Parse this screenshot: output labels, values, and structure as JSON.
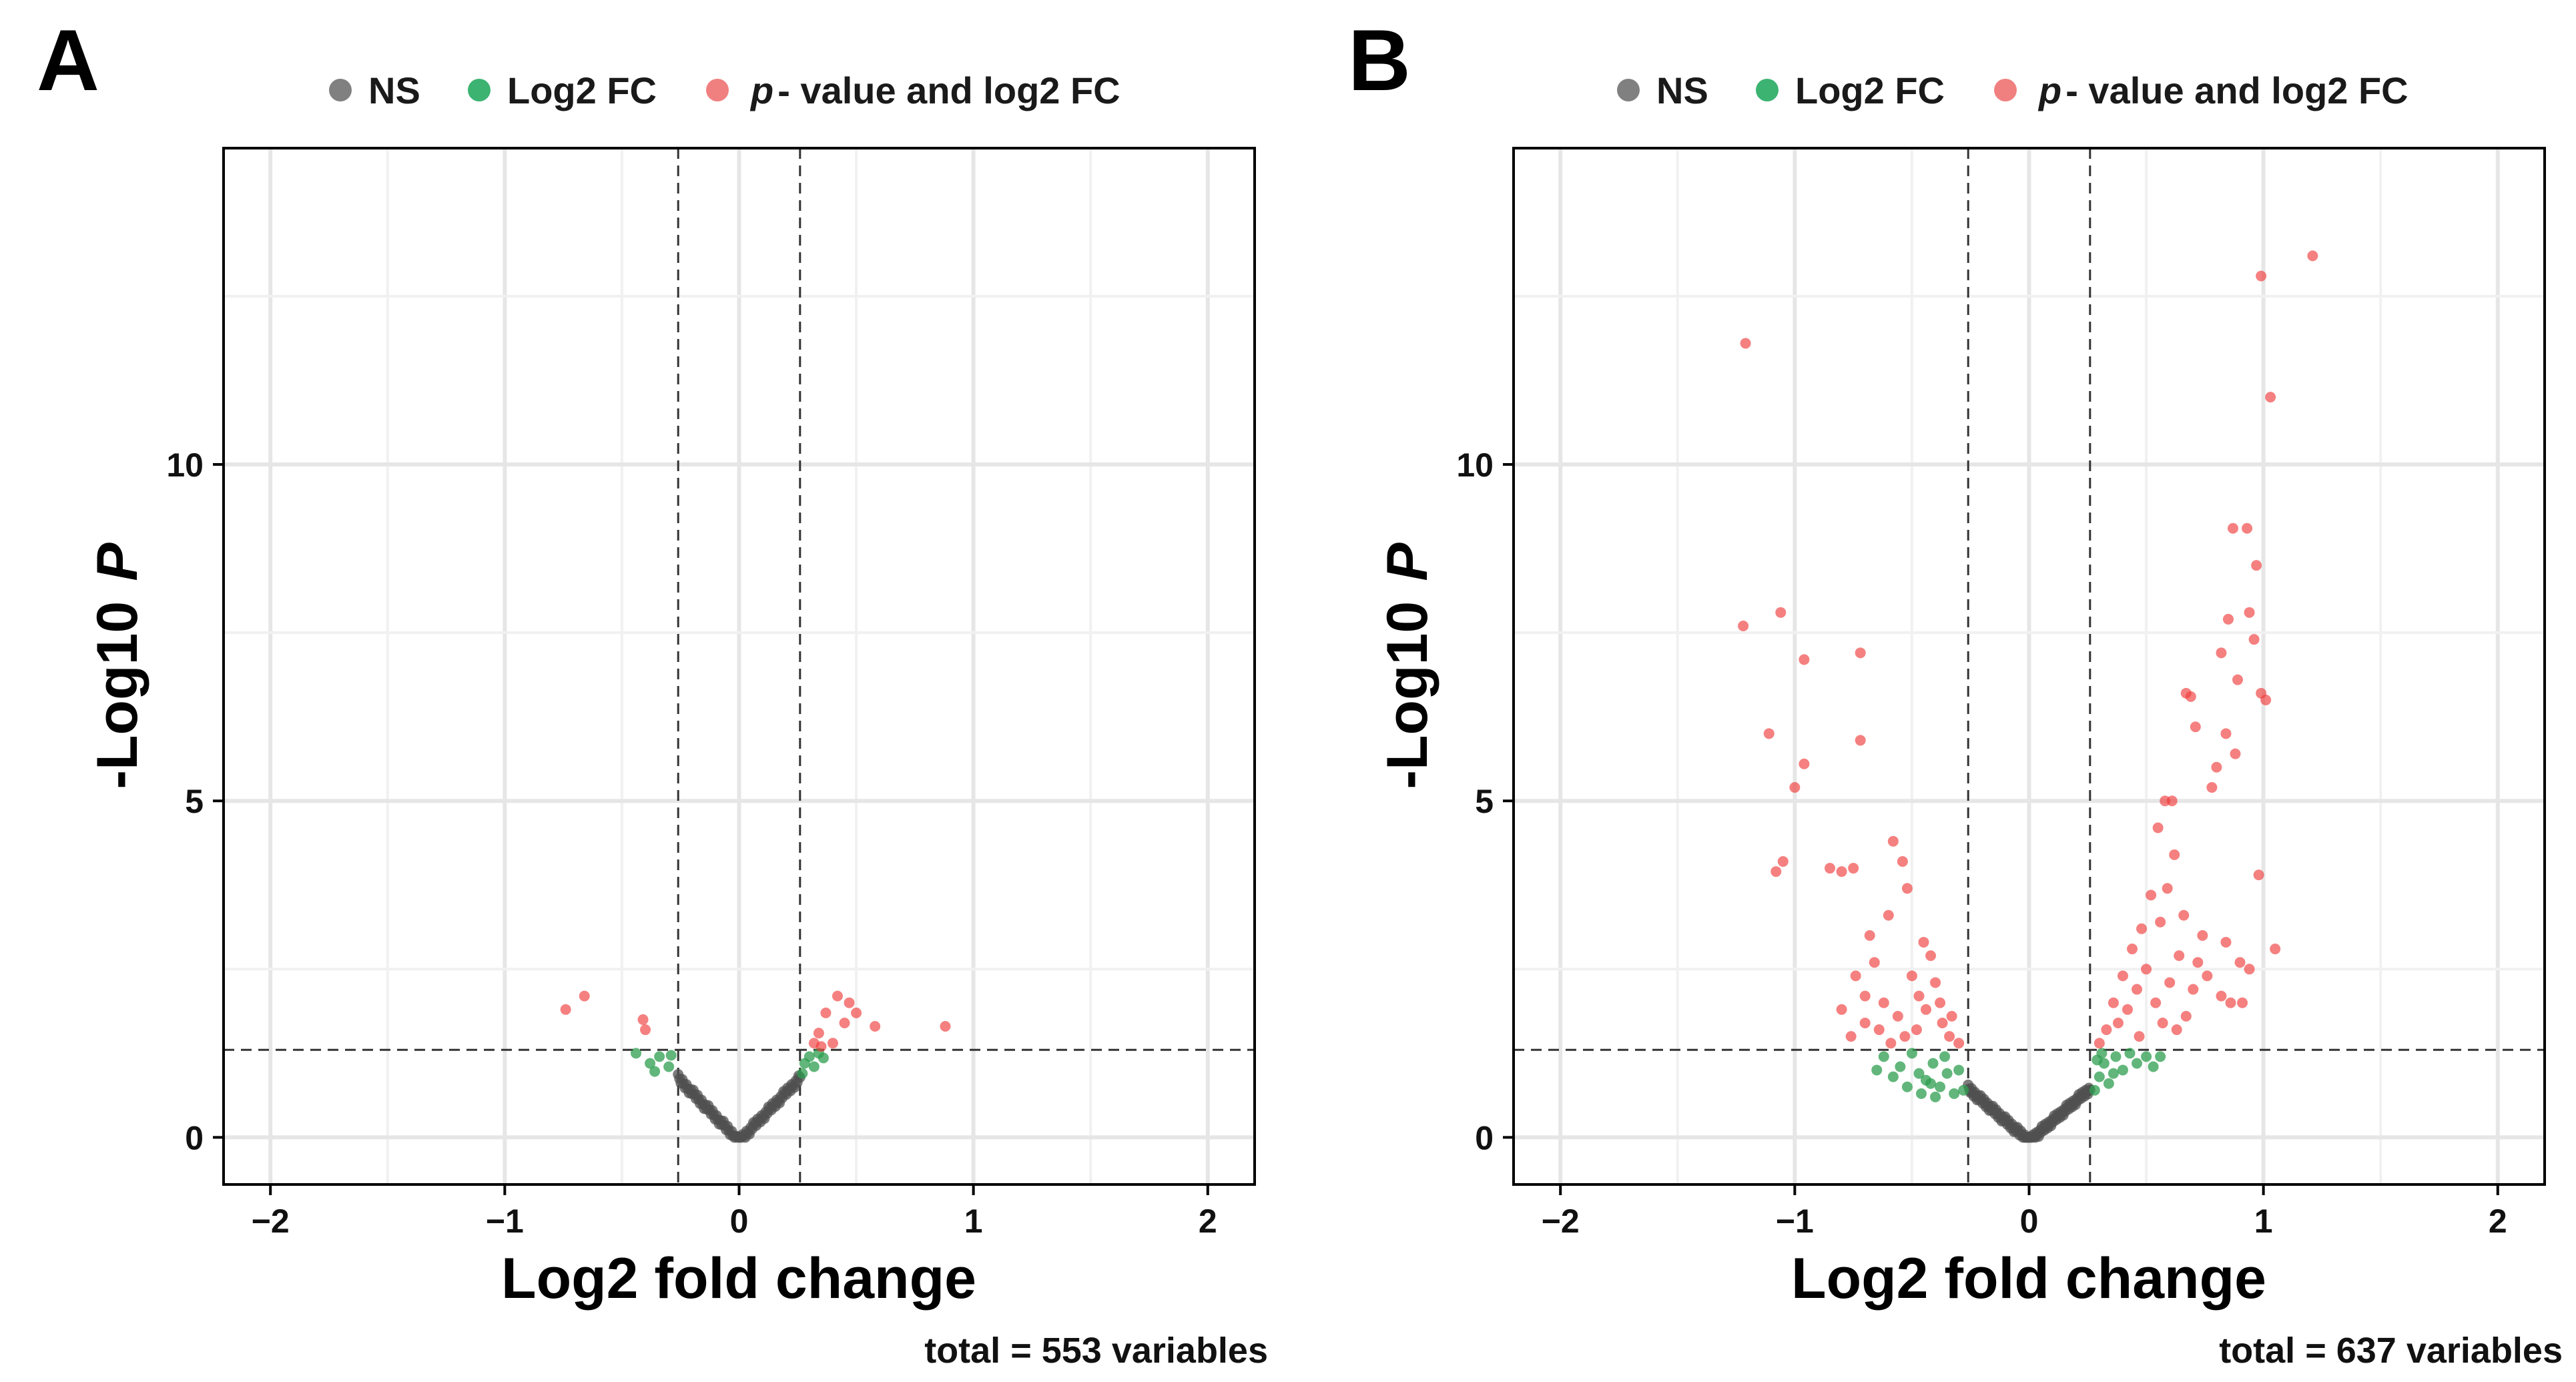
{
  "chart_data": [
    {
      "type": "scatter",
      "panel": "A",
      "legend": [
        {
          "label": "NS",
          "color": "#808080"
        },
        {
          "label": "Log2 FC",
          "color": "#3cb371"
        },
        {
          "label_italic": "p",
          "label": "- value  and  log2  FC",
          "color": "#f08080"
        }
      ],
      "xlabel": "Log2 fold change",
      "ylabel_prefix": "-Log10",
      "ylabel_italic": "P",
      "xlim": [
        -2.2,
        2.2
      ],
      "ylim": [
        -0.7,
        14.7
      ],
      "xticks": [
        "−2",
        "−1",
        "0",
        "1",
        "2"
      ],
      "xtick_values": [
        -2,
        -1,
        0,
        1,
        2
      ],
      "yticks": [
        "0",
        "5",
        "10"
      ],
      "ytick_values": [
        0,
        5,
        10
      ],
      "grid": true,
      "fc_cutoff": 0.26,
      "p_cutoff": 1.3,
      "caption": "total = 553 variables",
      "significant_points": [
        {
          "x": -0.74,
          "y": 1.9
        },
        {
          "x": -0.66,
          "y": 2.1
        },
        {
          "x": -0.41,
          "y": 1.75
        },
        {
          "x": -0.4,
          "y": 1.6
        },
        {
          "x": 0.34,
          "y": 1.55
        },
        {
          "x": 0.37,
          "y": 1.85
        },
        {
          "x": 0.4,
          "y": 1.4
        },
        {
          "x": 0.42,
          "y": 2.1
        },
        {
          "x": 0.45,
          "y": 1.7
        },
        {
          "x": 0.47,
          "y": 2.0
        },
        {
          "x": 0.5,
          "y": 1.85
        },
        {
          "x": 0.58,
          "y": 1.65
        },
        {
          "x": 0.88,
          "y": 1.65
        },
        {
          "x": 0.32,
          "y": 1.4
        },
        {
          "x": 0.35,
          "y": 1.35
        }
      ],
      "fc_points": [
        {
          "x": -0.44,
          "y": 1.25
        },
        {
          "x": -0.38,
          "y": 1.1
        },
        {
          "x": -0.34,
          "y": 1.2
        },
        {
          "x": -0.3,
          "y": 1.05
        },
        {
          "x": -0.29,
          "y": 1.22
        },
        {
          "x": 0.27,
          "y": 0.95
        },
        {
          "x": 0.28,
          "y": 1.1
        },
        {
          "x": 0.3,
          "y": 1.2
        },
        {
          "x": 0.32,
          "y": 1.05
        },
        {
          "x": 0.34,
          "y": 1.25
        },
        {
          "x": 0.36,
          "y": 1.18
        },
        {
          "x": -0.36,
          "y": 0.98
        }
      ],
      "ns_slope": 3.6,
      "ns_xrange": [
        -0.26,
        0.26
      ],
      "ns_count": 90
    },
    {
      "type": "scatter",
      "panel": "B",
      "legend": [
        {
          "label": "NS",
          "color": "#808080"
        },
        {
          "label": "Log2 FC",
          "color": "#3cb371"
        },
        {
          "label_italic": "p",
          "label": "- value  and  log2  FC",
          "color": "#f08080"
        }
      ],
      "xlabel": "Log2 fold change",
      "ylabel_prefix": "-Log10",
      "ylabel_italic": "P",
      "xlim": [
        -2.2,
        2.2
      ],
      "ylim": [
        -0.7,
        14.7
      ],
      "xticks": [
        "−2",
        "−1",
        "0",
        "1",
        "2"
      ],
      "xtick_values": [
        -2,
        -1,
        0,
        1,
        2
      ],
      "yticks": [
        "0",
        "5",
        "10"
      ],
      "ytick_values": [
        0,
        5,
        10
      ],
      "grid": true,
      "fc_cutoff": 0.26,
      "p_cutoff": 1.3,
      "caption": "total = 637 variables",
      "significant_points": [
        {
          "x": -1.21,
          "y": 11.8
        },
        {
          "x": -1.22,
          "y": 7.6
        },
        {
          "x": -1.06,
          "y": 7.8
        },
        {
          "x": -0.96,
          "y": 7.1
        },
        {
          "x": -0.72,
          "y": 7.2
        },
        {
          "x": -0.72,
          "y": 5.9
        },
        {
          "x": -1.11,
          "y": 6.0
        },
        {
          "x": -0.96,
          "y": 5.55
        },
        {
          "x": -1.0,
          "y": 5.2
        },
        {
          "x": -1.08,
          "y": 3.95
        },
        {
          "x": -1.05,
          "y": 4.1
        },
        {
          "x": -0.85,
          "y": 4.0
        },
        {
          "x": -0.8,
          "y": 3.95
        },
        {
          "x": -0.75,
          "y": 4.0
        },
        {
          "x": -0.58,
          "y": 4.4
        },
        {
          "x": -0.54,
          "y": 4.1
        },
        {
          "x": -0.52,
          "y": 3.7
        },
        {
          "x": -0.6,
          "y": 3.3
        },
        {
          "x": -0.68,
          "y": 3.0
        },
        {
          "x": -0.66,
          "y": 2.6
        },
        {
          "x": -0.74,
          "y": 2.4
        },
        {
          "x": -0.7,
          "y": 2.1
        },
        {
          "x": -0.62,
          "y": 2.0
        },
        {
          "x": -0.56,
          "y": 1.8
        },
        {
          "x": -0.5,
          "y": 2.4
        },
        {
          "x": -0.47,
          "y": 2.1
        },
        {
          "x": -0.44,
          "y": 1.9
        },
        {
          "x": -0.42,
          "y": 2.7
        },
        {
          "x": -0.4,
          "y": 2.3
        },
        {
          "x": -0.37,
          "y": 1.7
        },
        {
          "x": -0.34,
          "y": 1.5
        },
        {
          "x": -0.3,
          "y": 1.4
        },
        {
          "x": -0.48,
          "y": 1.6
        },
        {
          "x": -0.53,
          "y": 1.5
        },
        {
          "x": -0.59,
          "y": 1.4
        },
        {
          "x": -0.64,
          "y": 1.6
        },
        {
          "x": -0.8,
          "y": 1.9
        },
        {
          "x": -0.76,
          "y": 1.5
        },
        {
          "x": -0.7,
          "y": 1.7
        },
        {
          "x": -0.45,
          "y": 2.9
        },
        {
          "x": -0.38,
          "y": 2.0
        },
        {
          "x": -0.33,
          "y": 1.8
        },
        {
          "x": 1.21,
          "y": 13.1
        },
        {
          "x": 0.99,
          "y": 12.8
        },
        {
          "x": 1.03,
          "y": 11.0
        },
        {
          "x": 0.87,
          "y": 9.05
        },
        {
          "x": 0.93,
          "y": 9.05
        },
        {
          "x": 0.97,
          "y": 8.5
        },
        {
          "x": 0.85,
          "y": 7.7
        },
        {
          "x": 0.94,
          "y": 7.8
        },
        {
          "x": 0.96,
          "y": 7.4
        },
        {
          "x": 0.82,
          "y": 7.2
        },
        {
          "x": 0.89,
          "y": 6.8
        },
        {
          "x": 0.99,
          "y": 6.6
        },
        {
          "x": 1.01,
          "y": 6.5
        },
        {
          "x": 0.67,
          "y": 6.6
        },
        {
          "x": 0.69,
          "y": 6.55
        },
        {
          "x": 0.71,
          "y": 6.1
        },
        {
          "x": 0.84,
          "y": 6.0
        },
        {
          "x": 0.88,
          "y": 5.7
        },
        {
          "x": 0.8,
          "y": 5.5
        },
        {
          "x": 0.78,
          "y": 5.2
        },
        {
          "x": 0.58,
          "y": 5.0
        },
        {
          "x": 0.61,
          "y": 5.0
        },
        {
          "x": 0.55,
          "y": 4.6
        },
        {
          "x": 0.62,
          "y": 4.2
        },
        {
          "x": 0.98,
          "y": 3.9
        },
        {
          "x": 1.05,
          "y": 2.8
        },
        {
          "x": 0.84,
          "y": 2.9
        },
        {
          "x": 0.9,
          "y": 2.6
        },
        {
          "x": 0.94,
          "y": 2.5
        },
        {
          "x": 0.82,
          "y": 2.1
        },
        {
          "x": 0.86,
          "y": 2.0
        },
        {
          "x": 0.91,
          "y": 2.0
        },
        {
          "x": 0.67,
          "y": 1.8
        },
        {
          "x": 0.72,
          "y": 2.6
        },
        {
          "x": 0.74,
          "y": 3.0
        },
        {
          "x": 0.66,
          "y": 3.3
        },
        {
          "x": 0.52,
          "y": 3.6
        },
        {
          "x": 0.48,
          "y": 3.1
        },
        {
          "x": 0.44,
          "y": 2.8
        },
        {
          "x": 0.4,
          "y": 2.4
        },
        {
          "x": 0.36,
          "y": 2.0
        },
        {
          "x": 0.33,
          "y": 1.6
        },
        {
          "x": 0.3,
          "y": 1.4
        },
        {
          "x": 0.46,
          "y": 2.2
        },
        {
          "x": 0.5,
          "y": 2.5
        },
        {
          "x": 0.56,
          "y": 3.2
        },
        {
          "x": 0.59,
          "y": 3.7
        },
        {
          "x": 0.42,
          "y": 1.9
        },
        {
          "x": 0.38,
          "y": 1.7
        },
        {
          "x": 0.54,
          "y": 2.0
        },
        {
          "x": 0.6,
          "y": 2.3
        },
        {
          "x": 0.64,
          "y": 2.7
        },
        {
          "x": 0.7,
          "y": 2.2
        },
        {
          "x": 0.76,
          "y": 2.4
        },
        {
          "x": 0.47,
          "y": 1.5
        },
        {
          "x": 0.57,
          "y": 1.7
        },
        {
          "x": 0.63,
          "y": 1.6
        }
      ],
      "fc_points": [
        {
          "x": -0.62,
          "y": 1.2
        },
        {
          "x": -0.55,
          "y": 1.05
        },
        {
          "x": -0.5,
          "y": 1.25
        },
        {
          "x": -0.47,
          "y": 0.95
        },
        {
          "x": -0.44,
          "y": 0.85
        },
        {
          "x": -0.41,
          "y": 1.1
        },
        {
          "x": -0.38,
          "y": 0.75
        },
        {
          "x": -0.35,
          "y": 0.95
        },
        {
          "x": -0.32,
          "y": 0.65
        },
        {
          "x": -0.3,
          "y": 1.0
        },
        {
          "x": -0.28,
          "y": 0.7
        },
        {
          "x": -0.58,
          "y": 0.9
        },
        {
          "x": -0.52,
          "y": 0.75
        },
        {
          "x": -0.46,
          "y": 0.65
        },
        {
          "x": -0.4,
          "y": 0.6
        },
        {
          "x": -0.36,
          "y": 1.2
        },
        {
          "x": -0.65,
          "y": 1.0
        },
        {
          "x": -0.42,
          "y": 0.8
        },
        {
          "x": 0.28,
          "y": 0.7
        },
        {
          "x": 0.3,
          "y": 0.9
        },
        {
          "x": 0.32,
          "y": 1.1
        },
        {
          "x": 0.34,
          "y": 0.8
        },
        {
          "x": 0.37,
          "y": 1.2
        },
        {
          "x": 0.4,
          "y": 1.0
        },
        {
          "x": 0.43,
          "y": 1.25
        },
        {
          "x": 0.46,
          "y": 1.1
        },
        {
          "x": 0.5,
          "y": 1.2
        },
        {
          "x": 0.53,
          "y": 1.05
        },
        {
          "x": 0.56,
          "y": 1.2
        },
        {
          "x": 0.31,
          "y": 1.25
        },
        {
          "x": 0.36,
          "y": 0.95
        },
        {
          "x": 0.29,
          "y": 1.15
        }
      ],
      "ns_slope": 3.0,
      "ns_xrange": [
        -0.26,
        0.26
      ],
      "ns_count": 110
    }
  ]
}
